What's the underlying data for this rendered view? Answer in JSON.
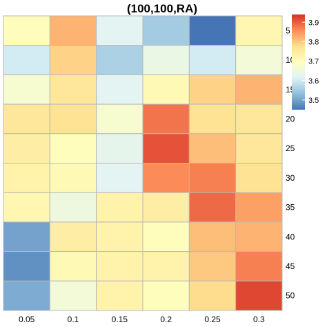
{
  "chart_data": {
    "type": "heatmap",
    "title": "(100,100,RA)",
    "x_categories": [
      "0.05",
      "0.1",
      "0.15",
      "0.2",
      "0.25",
      "0.3"
    ],
    "y_categories": [
      "5",
      "10",
      "15",
      "20",
      "25",
      "30",
      "35",
      "40",
      "45",
      "50"
    ],
    "values": [
      [
        3.7,
        3.82,
        3.62,
        3.55,
        3.45,
        3.72
      ],
      [
        3.6,
        3.79,
        3.56,
        3.64,
        3.6,
        3.66
      ],
      [
        3.67,
        3.76,
        3.62,
        3.71,
        3.79,
        3.82
      ],
      [
        3.76,
        3.77,
        3.67,
        3.88,
        3.77,
        3.76
      ],
      [
        3.74,
        3.7,
        3.63,
        3.91,
        3.81,
        3.76
      ],
      [
        3.73,
        3.71,
        3.62,
        3.86,
        3.87,
        3.77
      ],
      [
        3.72,
        3.65,
        3.73,
        3.74,
        3.89,
        3.84
      ],
      [
        3.5,
        3.74,
        3.73,
        3.7,
        3.81,
        3.82
      ],
      [
        3.48,
        3.71,
        3.73,
        3.73,
        3.8,
        3.87
      ],
      [
        3.51,
        3.66,
        3.73,
        3.7,
        3.78,
        3.92
      ]
    ],
    "legend_ticks": [
      3.5,
      3.6,
      3.7,
      3.8,
      3.9
    ],
    "legend_tick_labels": [
      "3.5",
      "3.6",
      "3.7",
      "3.8",
      "3.9"
    ],
    "value_range": [
      3.45,
      3.94
    ],
    "colorscale": [
      "#4575b4",
      "#91bfdb",
      "#e0f3f8",
      "#ffffbf",
      "#fee090",
      "#fc8d59",
      "#d73027"
    ],
    "grid_line_color": "#b8b8b8",
    "legend_position": "right",
    "x_axis_position": "bottom",
    "y_axis_position": "right"
  }
}
